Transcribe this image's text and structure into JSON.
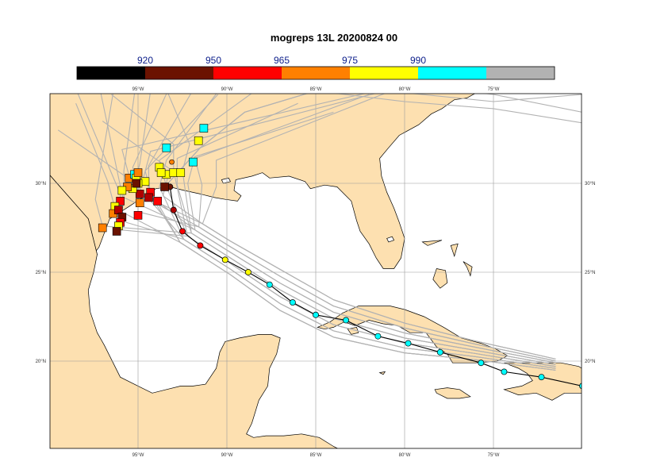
{
  "title": "mogreps 13L 20200824 00",
  "colorbar": {
    "labels": [
      "920",
      "950",
      "965",
      "975",
      "990"
    ],
    "colors": [
      "#000000",
      "#6b1200",
      "#ff0000",
      "#ff8000",
      "#ffff00",
      "#00ffff",
      "#b2b2b2"
    ]
  },
  "map": {
    "land_color": "#fde0b0",
    "sea_color": "#ffffff",
    "grid_color": "#999999",
    "lon_ticks": [
      "95°W",
      "90°W",
      "85°W",
      "80°W",
      "75°W"
    ],
    "lat_ticks": [
      "30°N",
      "25°N",
      "20°N"
    ]
  },
  "tracks": {
    "ensemble_color": "#b2b2b2",
    "main_track": [
      {
        "lon": -70.0,
        "lat": 18.6,
        "color": "#00ffff"
      },
      {
        "lon": -72.3,
        "lat": 19.1,
        "color": "#00ffff"
      },
      {
        "lon": -74.4,
        "lat": 19.4,
        "color": "#00ffff"
      },
      {
        "lon": -75.7,
        "lat": 19.9,
        "color": "#00ffff"
      },
      {
        "lon": -78.0,
        "lat": 20.5,
        "color": "#00ffff"
      },
      {
        "lon": -79.8,
        "lat": 21.0,
        "color": "#00ffff"
      },
      {
        "lon": -81.5,
        "lat": 21.4,
        "color": "#00ffff"
      },
      {
        "lon": -83.3,
        "lat": 22.3,
        "color": "#00ffff"
      },
      {
        "lon": -85.0,
        "lat": 22.6,
        "color": "#00ffff"
      },
      {
        "lon": -86.3,
        "lat": 23.3,
        "color": "#00ffff"
      },
      {
        "lon": -87.6,
        "lat": 24.3,
        "color": "#00ffff"
      },
      {
        "lon": -88.8,
        "lat": 25.0,
        "color": "#ffff00"
      },
      {
        "lon": -90.1,
        "lat": 25.7,
        "color": "#ffff00"
      },
      {
        "lon": -91.5,
        "lat": 26.5,
        "color": "#ff0000"
      },
      {
        "lon": -92.5,
        "lat": 27.3,
        "color": "#ff0000"
      },
      {
        "lon": -93.0,
        "lat": 28.5,
        "color": "#b00000"
      },
      {
        "lon": -93.2,
        "lat": 29.8,
        "color": "#6b1200"
      }
    ],
    "landfall_squares": [
      {
        "lon": -94.3,
        "lat": 29.5,
        "color": "#ff0000"
      },
      {
        "lon": -94.9,
        "lat": 29.4,
        "color": "#b00000"
      },
      {
        "lon": -95.3,
        "lat": 29.7,
        "color": "#ffff00"
      },
      {
        "lon": -95.6,
        "lat": 29.8,
        "color": "#ff8000"
      },
      {
        "lon": -95.9,
        "lat": 29.6,
        "color": "#ffff00"
      },
      {
        "lon": -96.0,
        "lat": 29.0,
        "color": "#ff0000"
      },
      {
        "lon": -96.3,
        "lat": 28.7,
        "color": "#ffff00"
      },
      {
        "lon": -96.4,
        "lat": 28.3,
        "color": "#ff8000"
      },
      {
        "lon": -96.1,
        "lat": 28.5,
        "color": "#b00000"
      },
      {
        "lon": -95.9,
        "lat": 28.1,
        "color": "#6b1200"
      },
      {
        "lon": -96.0,
        "lat": 27.8,
        "color": "#ff0000"
      },
      {
        "lon": -96.1,
        "lat": 27.6,
        "color": "#ffff00"
      },
      {
        "lon": -96.2,
        "lat": 27.3,
        "color": "#6b1200"
      },
      {
        "lon": -97.0,
        "lat": 27.5,
        "color": "#ff8000"
      },
      {
        "lon": -95.0,
        "lat": 28.2,
        "color": "#ff0000"
      },
      {
        "lon": -94.9,
        "lat": 28.9,
        "color": "#ff8000"
      },
      {
        "lon": -94.4,
        "lat": 29.2,
        "color": "#b00000"
      },
      {
        "lon": -94.6,
        "lat": 30.1,
        "color": "#ffff00"
      },
      {
        "lon": -95.0,
        "lat": 30.0,
        "color": "#ffff00"
      },
      {
        "lon": -95.5,
        "lat": 30.3,
        "color": "#ff8000"
      },
      {
        "lon": -95.2,
        "lat": 30.5,
        "color": "#00ffff"
      },
      {
        "lon": -95.1,
        "lat": 30.3,
        "color": "#ffff00"
      },
      {
        "lon": -95.0,
        "lat": 30.6,
        "color": "#ff8000"
      },
      {
        "lon": -95.1,
        "lat": 30.0,
        "color": "#6b1200"
      },
      {
        "lon": -93.8,
        "lat": 30.9,
        "color": "#ffff00"
      },
      {
        "lon": -93.4,
        "lat": 30.5,
        "color": "#ffff00"
      },
      {
        "lon": -93.0,
        "lat": 30.6,
        "color": "#ffff00"
      },
      {
        "lon": -92.6,
        "lat": 30.6,
        "color": "#ffff00"
      },
      {
        "lon": -93.7,
        "lat": 30.6,
        "color": "#ffff00"
      },
      {
        "lon": -93.5,
        "lat": 29.8,
        "color": "#6b1200"
      },
      {
        "lon": -93.9,
        "lat": 29.0,
        "color": "#ff0000"
      },
      {
        "lon": -93.4,
        "lat": 32.0,
        "color": "#00ffff"
      },
      {
        "lon": -91.9,
        "lat": 31.2,
        "color": "#00ffff"
      },
      {
        "lon": -91.6,
        "lat": 32.4,
        "color": "#ffff00"
      },
      {
        "lon": -91.3,
        "lat": 33.1,
        "color": "#00ffff"
      }
    ],
    "extra_dot": {
      "lon": -93.1,
      "lat": 31.2,
      "color": "#ff8000"
    }
  }
}
